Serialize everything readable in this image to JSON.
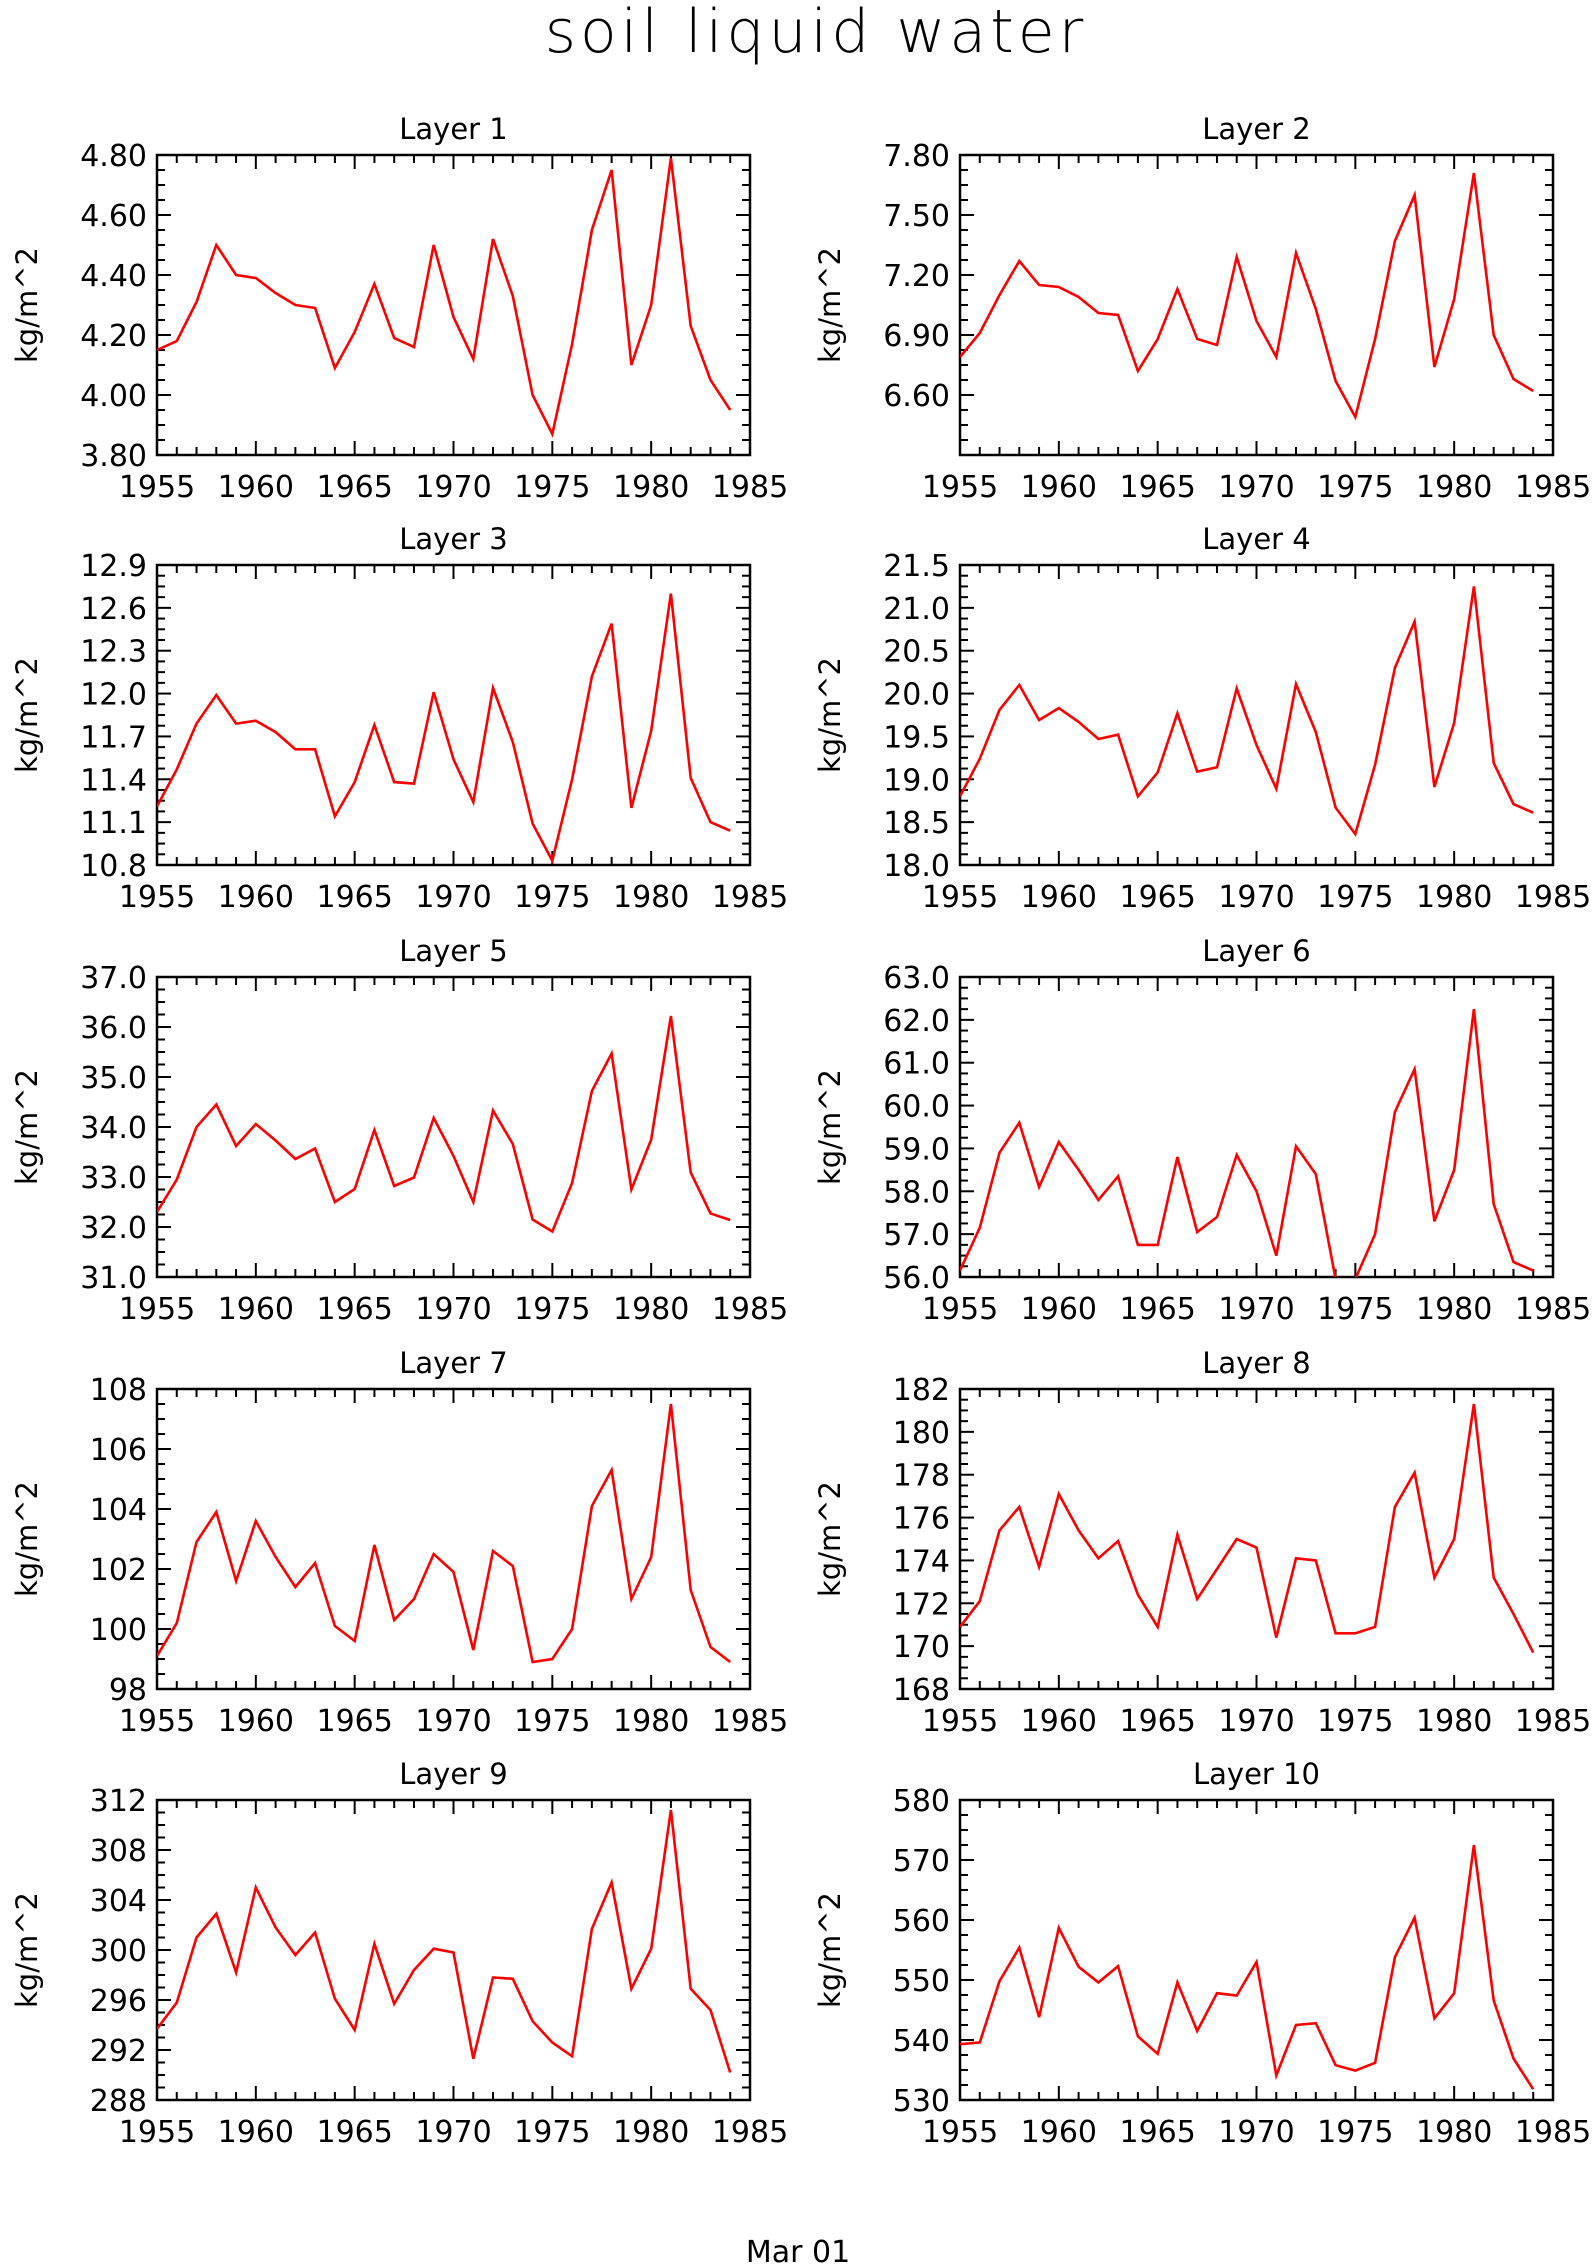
{
  "title": "soil liquid water",
  "footer": "Mar 01",
  "colors": {
    "line": "#ff0000",
    "axes": "#000000",
    "background": "#ffffff"
  },
  "chart_data": [
    {
      "type": "line",
      "title": "Layer 1",
      "ylabel": "kg/m^2",
      "xlim": [
        1955,
        1985
      ],
      "ylim": [
        3.8,
        4.8
      ],
      "xticks": [
        "1955",
        "1960",
        "1965",
        "1970",
        "1975",
        "1980",
        "1985"
      ],
      "yticks": [
        "3.80",
        "4.00",
        "4.20",
        "4.40",
        "4.60",
        "4.80"
      ],
      "x": [
        1955,
        1956,
        1957,
        1958,
        1959,
        1960,
        1961,
        1962,
        1963,
        1964,
        1965,
        1966,
        1967,
        1968,
        1969,
        1970,
        1971,
        1972,
        1973,
        1974,
        1975,
        1976,
        1977,
        1978,
        1979,
        1980,
        1981,
        1982,
        1983,
        1984
      ],
      "values": [
        4.15,
        4.18,
        4.31,
        4.5,
        4.4,
        4.39,
        4.34,
        4.3,
        4.29,
        4.09,
        4.21,
        4.37,
        4.19,
        4.16,
        4.5,
        4.26,
        4.12,
        4.52,
        4.33,
        4.0,
        3.87,
        4.17,
        4.55,
        4.75,
        4.1,
        4.3,
        4.79,
        4.23,
        4.05,
        3.95
      ]
    },
    {
      "type": "line",
      "title": "Layer 2",
      "ylabel": "kg/m^2",
      "xlim": [
        1955,
        1985
      ],
      "ylim": [
        6.3,
        7.8
      ],
      "xticks": [
        "1955",
        "1960",
        "1965",
        "1970",
        "1975",
        "1980",
        "1985"
      ],
      "yticks": [
        "6.60",
        "6.90",
        "7.20",
        "7.50",
        "7.80"
      ],
      "x": [
        1955,
        1956,
        1957,
        1958,
        1959,
        1960,
        1961,
        1962,
        1963,
        1964,
        1965,
        1966,
        1967,
        1968,
        1969,
        1970,
        1971,
        1972,
        1973,
        1974,
        1975,
        1976,
        1977,
        1978,
        1979,
        1980,
        1981,
        1982,
        1983,
        1984
      ],
      "values": [
        6.79,
        6.91,
        7.1,
        7.27,
        7.15,
        7.14,
        7.09,
        7.01,
        7.0,
        6.72,
        6.88,
        7.13,
        6.88,
        6.85,
        7.29,
        6.97,
        6.79,
        7.31,
        7.03,
        6.67,
        6.49,
        6.88,
        7.37,
        7.6,
        6.74,
        7.08,
        7.71,
        6.9,
        6.68,
        6.62
      ]
    },
    {
      "type": "line",
      "title": "Layer 3",
      "ylabel": "kg/m^2",
      "xlim": [
        1955,
        1985
      ],
      "ylim": [
        10.8,
        12.9
      ],
      "xticks": [
        "1955",
        "1960",
        "1965",
        "1970",
        "1975",
        "1980",
        "1985"
      ],
      "yticks": [
        "10.8",
        "11.1",
        "11.4",
        "11.7",
        "12.0",
        "12.3",
        "12.6",
        "12.9"
      ],
      "x": [
        1955,
        1956,
        1957,
        1958,
        1959,
        1960,
        1961,
        1962,
        1963,
        1964,
        1965,
        1966,
        1967,
        1968,
        1969,
        1970,
        1971,
        1972,
        1973,
        1974,
        1975,
        1976,
        1977,
        1978,
        1979,
        1980,
        1981,
        1982,
        1983,
        1984
      ],
      "values": [
        11.21,
        11.47,
        11.79,
        11.99,
        11.79,
        11.81,
        11.73,
        11.61,
        11.61,
        11.14,
        11.38,
        11.78,
        11.38,
        11.37,
        12.01,
        11.54,
        11.24,
        12.04,
        11.66,
        11.09,
        10.83,
        11.4,
        12.12,
        12.49,
        11.2,
        11.74,
        12.7,
        11.41,
        11.1,
        11.04
      ]
    },
    {
      "type": "line",
      "title": "Layer 4",
      "ylabel": "kg/m^2",
      "xlim": [
        1955,
        1985
      ],
      "ylim": [
        18.0,
        21.5
      ],
      "xticks": [
        "1955",
        "1960",
        "1965",
        "1970",
        "1975",
        "1980",
        "1985"
      ],
      "yticks": [
        "18.0",
        "18.5",
        "19.0",
        "19.5",
        "20.0",
        "20.5",
        "21.0",
        "21.5"
      ],
      "x": [
        1955,
        1956,
        1957,
        1958,
        1959,
        1960,
        1961,
        1962,
        1963,
        1964,
        1965,
        1966,
        1967,
        1968,
        1969,
        1970,
        1971,
        1972,
        1973,
        1974,
        1975,
        1976,
        1977,
        1978,
        1979,
        1980,
        1981,
        1982,
        1983,
        1984
      ],
      "values": [
        18.8,
        19.24,
        19.81,
        20.1,
        19.69,
        19.83,
        19.67,
        19.47,
        19.52,
        18.8,
        19.08,
        19.77,
        19.09,
        19.14,
        20.06,
        19.4,
        18.89,
        20.11,
        19.55,
        18.67,
        18.36,
        19.17,
        20.3,
        20.84,
        18.91,
        19.66,
        21.25,
        19.19,
        18.71,
        18.61
      ]
    },
    {
      "type": "line",
      "title": "Layer 5",
      "ylabel": "kg/m^2",
      "xlim": [
        1955,
        1985
      ],
      "ylim": [
        31.0,
        37.0
      ],
      "xticks": [
        "1955",
        "1960",
        "1965",
        "1970",
        "1975",
        "1980",
        "1985"
      ],
      "yticks": [
        "31.0",
        "32.0",
        "33.0",
        "34.0",
        "35.0",
        "36.0",
        "37.0"
      ],
      "x": [
        1955,
        1956,
        1957,
        1958,
        1959,
        1960,
        1961,
        1962,
        1963,
        1964,
        1965,
        1966,
        1967,
        1968,
        1969,
        1970,
        1971,
        1972,
        1973,
        1974,
        1975,
        1976,
        1977,
        1978,
        1979,
        1980,
        1981,
        1982,
        1983,
        1984
      ],
      "values": [
        32.3,
        32.95,
        34.0,
        34.45,
        33.62,
        34.06,
        33.73,
        33.36,
        33.57,
        32.5,
        32.76,
        33.94,
        32.82,
        32.99,
        34.18,
        33.42,
        32.5,
        34.33,
        33.66,
        32.15,
        31.91,
        32.88,
        34.72,
        35.47,
        32.75,
        33.75,
        36.22,
        33.09,
        32.27,
        32.14
      ]
    },
    {
      "type": "line",
      "title": "Layer 6",
      "ylabel": "kg/m^2",
      "xlim": [
        1955,
        1985
      ],
      "ylim": [
        56.0,
        63.0
      ],
      "xticks": [
        "1955",
        "1960",
        "1965",
        "1970",
        "1975",
        "1980",
        "1985"
      ],
      "yticks": [
        "56.0",
        "57.0",
        "58.0",
        "59.0",
        "60.0",
        "61.0",
        "62.0",
        "63.0"
      ],
      "x": [
        1955,
        1956,
        1957,
        1958,
        1959,
        1960,
        1961,
        1962,
        1963,
        1964,
        1965,
        1966,
        1967,
        1968,
        1969,
        1970,
        1971,
        1972,
        1973,
        1974,
        1975,
        1976,
        1977,
        1978,
        1979,
        1980,
        1981,
        1982,
        1983,
        1984
      ],
      "values": [
        56.15,
        57.15,
        58.9,
        59.6,
        58.1,
        59.15,
        58.5,
        57.8,
        58.35,
        56.75,
        56.75,
        58.8,
        57.05,
        57.4,
        58.85,
        58.0,
        56.5,
        59.05,
        58.4,
        55.95,
        55.95,
        57.0,
        59.85,
        60.85,
        57.3,
        58.5,
        62.25,
        57.7,
        56.35,
        56.15
      ]
    },
    {
      "type": "line",
      "title": "Layer 7",
      "ylabel": "kg/m^2",
      "xlim": [
        1955,
        1985
      ],
      "ylim": [
        98,
        108
      ],
      "xticks": [
        "1955",
        "1960",
        "1965",
        "1970",
        "1975",
        "1980",
        "1985"
      ],
      "yticks": [
        "98",
        "100",
        "102",
        "104",
        "106",
        "108"
      ],
      "x": [
        1955,
        1956,
        1957,
        1958,
        1959,
        1960,
        1961,
        1962,
        1963,
        1964,
        1965,
        1966,
        1967,
        1968,
        1969,
        1970,
        1971,
        1972,
        1973,
        1974,
        1975,
        1976,
        1977,
        1978,
        1979,
        1980,
        1981,
        1982,
        1983,
        1984
      ],
      "values": [
        99.1,
        100.2,
        102.9,
        103.9,
        101.6,
        103.6,
        102.4,
        101.4,
        102.2,
        100.1,
        99.6,
        102.8,
        100.3,
        101.0,
        102.5,
        101.9,
        99.3,
        102.6,
        102.1,
        98.9,
        99.0,
        100.0,
        104.1,
        105.3,
        101.0,
        102.4,
        107.5,
        101.3,
        99.4,
        98.9
      ]
    },
    {
      "type": "line",
      "title": "Layer 8",
      "ylabel": "kg/m^2",
      "xlim": [
        1955,
        1985
      ],
      "ylim": [
        168,
        182
      ],
      "xticks": [
        "1955",
        "1960",
        "1965",
        "1970",
        "1975",
        "1980",
        "1985"
      ],
      "yticks": [
        "168",
        "170",
        "172",
        "174",
        "176",
        "178",
        "180",
        "182"
      ],
      "x": [
        1955,
        1956,
        1957,
        1958,
        1959,
        1960,
        1961,
        1962,
        1963,
        1964,
        1965,
        1966,
        1967,
        1968,
        1969,
        1970,
        1971,
        1972,
        1973,
        1974,
        1975,
        1976,
        1977,
        1978,
        1979,
        1980,
        1981,
        1982,
        1983,
        1984
      ],
      "values": [
        170.9,
        172.1,
        175.4,
        176.5,
        173.7,
        177.1,
        175.4,
        174.1,
        174.9,
        172.4,
        170.9,
        175.2,
        172.2,
        173.6,
        175.0,
        174.6,
        170.4,
        174.1,
        174.0,
        170.6,
        170.6,
        170.9,
        176.5,
        178.1,
        173.2,
        175.0,
        181.3,
        173.2,
        171.5,
        169.7
      ]
    },
    {
      "type": "line",
      "title": "Layer 9",
      "ylabel": "kg/m^2",
      "xlim": [
        1955,
        1985
      ],
      "ylim": [
        288,
        312
      ],
      "xticks": [
        "1955",
        "1960",
        "1965",
        "1970",
        "1975",
        "1980",
        "1985"
      ],
      "yticks": [
        "288",
        "292",
        "296",
        "300",
        "304",
        "308",
        "312"
      ],
      "x": [
        1955,
        1956,
        1957,
        1958,
        1959,
        1960,
        1961,
        1962,
        1963,
        1964,
        1965,
        1966,
        1967,
        1968,
        1969,
        1970,
        1971,
        1972,
        1973,
        1974,
        1975,
        1976,
        1977,
        1978,
        1979,
        1980,
        1981,
        1982,
        1983,
        1984
      ],
      "values": [
        293.7,
        295.8,
        301.0,
        302.9,
        298.2,
        305.0,
        301.8,
        299.6,
        301.4,
        296.1,
        293.6,
        300.5,
        295.7,
        298.4,
        300.1,
        299.8,
        291.3,
        297.8,
        297.7,
        294.3,
        292.6,
        291.5,
        301.7,
        305.4,
        296.9,
        300.1,
        311.2,
        296.9,
        295.2,
        290.2
      ]
    },
    {
      "type": "line",
      "title": "Layer 10",
      "ylabel": "kg/m^2",
      "xlim": [
        1955,
        1985
      ],
      "ylim": [
        530,
        580
      ],
      "xticks": [
        "1955",
        "1960",
        "1965",
        "1970",
        "1975",
        "1980",
        "1985"
      ],
      "yticks": [
        "530",
        "540",
        "550",
        "560",
        "570",
        "580"
      ],
      "x": [
        1955,
        1956,
        1957,
        1958,
        1959,
        1960,
        1961,
        1962,
        1963,
        1964,
        1965,
        1966,
        1967,
        1968,
        1969,
        1970,
        1971,
        1972,
        1973,
        1974,
        1975,
        1976,
        1977,
        1978,
        1979,
        1980,
        1981,
        1982,
        1983,
        1984
      ],
      "values": [
        539.3,
        539.6,
        549.8,
        555.4,
        543.8,
        558.7,
        552.2,
        549.6,
        552.3,
        540.6,
        537.7,
        549.6,
        541.5,
        547.8,
        547.4,
        553.0,
        534.1,
        542.5,
        542.8,
        535.8,
        534.9,
        536.2,
        553.8,
        560.4,
        543.6,
        547.8,
        572.5,
        546.6,
        536.9,
        531.8
      ]
    }
  ]
}
